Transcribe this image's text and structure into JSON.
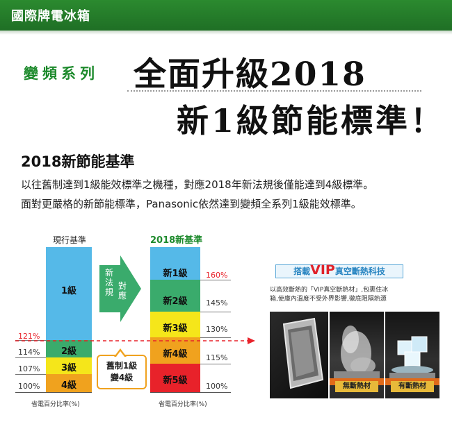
{
  "header": {
    "brand": "國際牌電冰箱"
  },
  "hero": {
    "series": "變頻系列",
    "headline_line1": "全面升級2018",
    "headline_line2": "新1級節能標準！"
  },
  "intro": {
    "title": "2018新節能基準",
    "line1": "以往舊制達到1級能效標準之機種，對應2018年新法規後僅能達到4級標準。",
    "line2": "面對更嚴格的新節能標準，Panasonic依然達到變頻全系列1級能效標準。"
  },
  "chart": {
    "current": {
      "title": "現行基準",
      "levels": [
        {
          "label": "1級",
          "color": "#55b9e8"
        },
        {
          "label": "2級",
          "color": "#3aab6c"
        },
        {
          "label": "3級",
          "color": "#f5e61a"
        },
        {
          "label": "4級",
          "color": "#f0a21e"
        }
      ],
      "percents": [
        "121%",
        "114%",
        "107%",
        "100%"
      ],
      "caption": "省電百分比率(%)"
    },
    "arrow_text_1": "新法規",
    "arrow_text_2": "對應",
    "callout": {
      "line1": "舊制1級",
      "line2": "變4級"
    },
    "new": {
      "title": "2018新基準",
      "levels": [
        {
          "label": "新1級",
          "color": "#55b9e8"
        },
        {
          "label": "新2級",
          "color": "#3aab6c"
        },
        {
          "label": "新3級",
          "color": "#f5e61a"
        },
        {
          "label": "新4級",
          "color": "#f0a21e"
        },
        {
          "label": "新5級",
          "color": "#e8222a"
        }
      ],
      "percents": [
        "160%",
        "145%",
        "130%",
        "115%",
        "100%"
      ],
      "caption": "省電百分比率(%)"
    }
  },
  "vip": {
    "prefix": "搭載",
    "big": "VIP",
    "suffix": "真空斷熱科技",
    "desc_line1": "以高效斷熱的「VIP真空斷熱材」,包裹住冰",
    "desc_line2": "箱,使庫內溫度不受外界影響,徹底阻隔熱源",
    "tag_without": "無斷熱材",
    "tag_with": "有斷熱材"
  },
  "colors": {
    "brand_green": "#1f7a28",
    "accent_red": "#e8222a"
  }
}
